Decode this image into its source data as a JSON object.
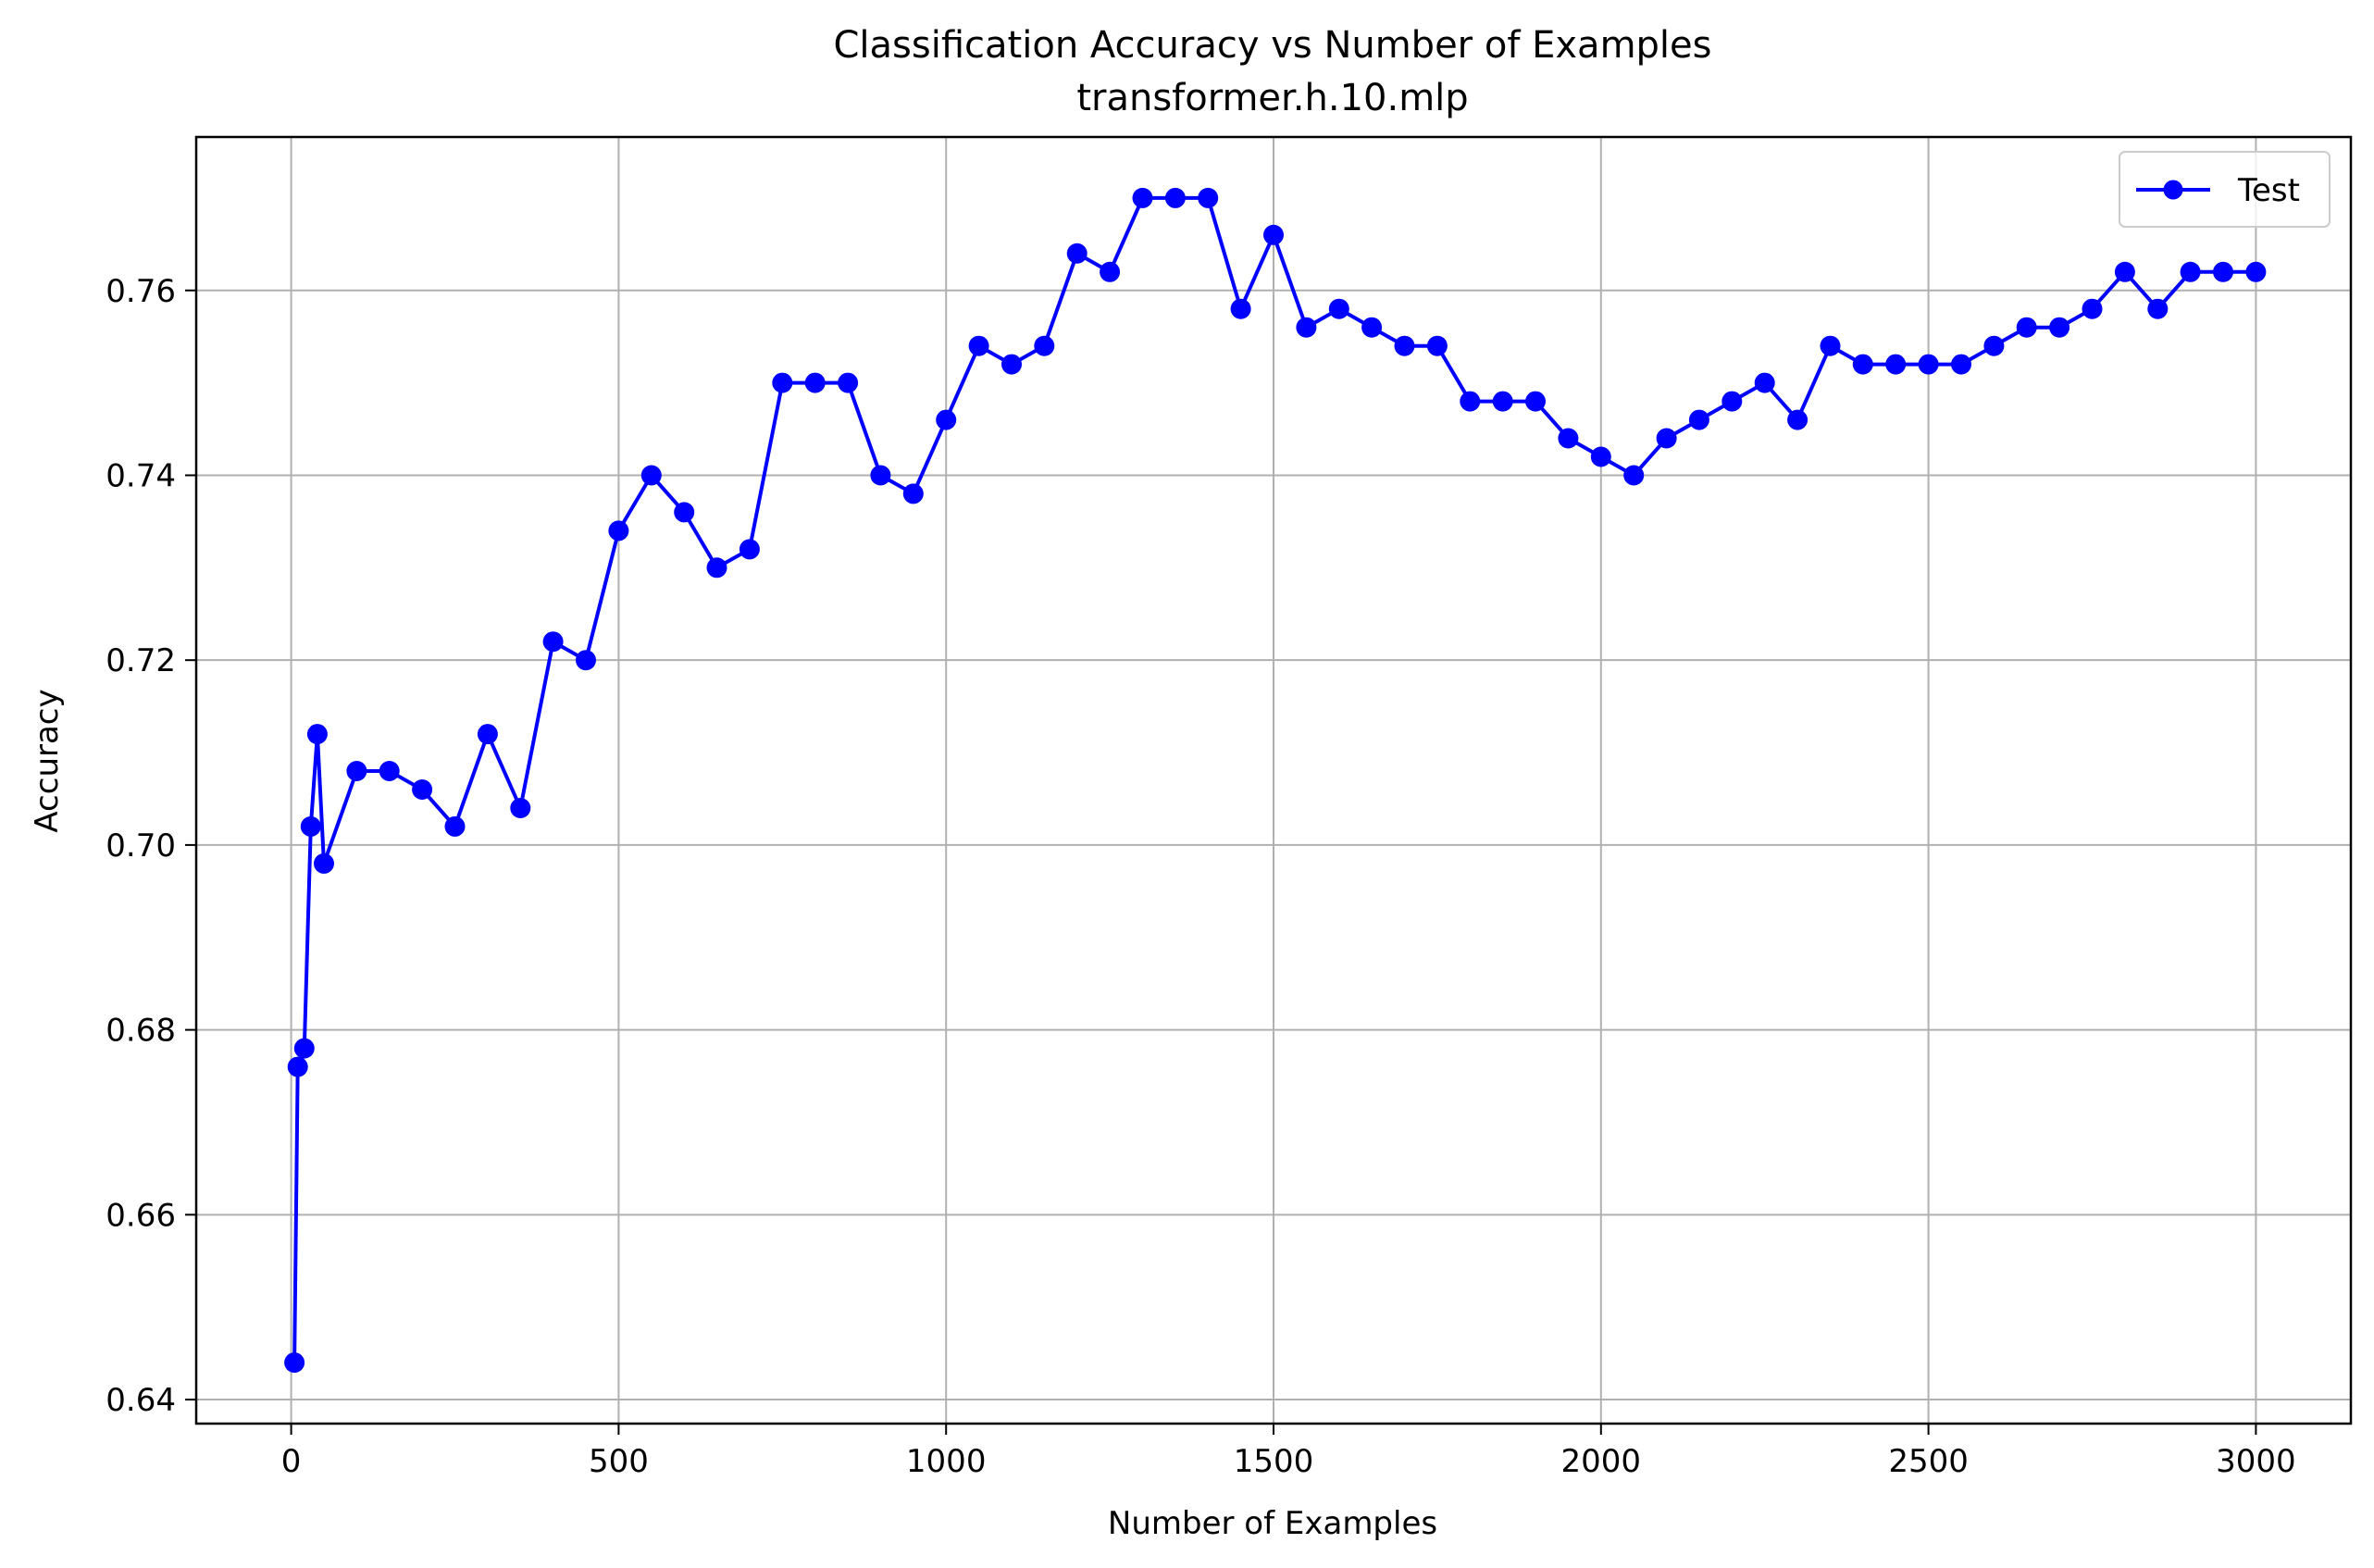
{
  "chart_data": {
    "type": "line",
    "title": "Classification Accuracy vs Number of Examples",
    "subtitle": "transformer.h.10.mlp",
    "xlabel": "Number of Examples",
    "ylabel": "Accuracy",
    "xlim": [
      -145,
      3145
    ],
    "ylim": [
      0.6374,
      0.7766
    ],
    "xticks": [
      0,
      500,
      1000,
      1500,
      2000,
      2500,
      3000
    ],
    "xtick_labels": [
      "0",
      "500",
      "1000",
      "1500",
      "2000",
      "2500",
      "3000"
    ],
    "yticks": [
      0.64,
      0.66,
      0.68,
      0.7,
      0.72,
      0.74,
      0.76
    ],
    "ytick_labels": [
      "0.64",
      "0.66",
      "0.68",
      "0.70",
      "0.72",
      "0.74",
      "0.76"
    ],
    "grid": true,
    "legend_position": "top-right",
    "series": [
      {
        "name": "Test",
        "color": "#0000ff",
        "marker": "circle",
        "x": [
          5,
          10,
          20,
          30,
          40,
          50,
          100,
          150,
          200,
          250,
          300,
          350,
          400,
          450,
          500,
          550,
          600,
          650,
          700,
          750,
          800,
          850,
          900,
          950,
          1000,
          1050,
          1100,
          1150,
          1200,
          1250,
          1300,
          1350,
          1400,
          1450,
          1500,
          1550,
          1600,
          1650,
          1700,
          1750,
          1800,
          1850,
          1900,
          1950,
          2000,
          2050,
          2100,
          2150,
          2200,
          2250,
          2300,
          2350,
          2400,
          2450,
          2500,
          2550,
          2600,
          2650,
          2700,
          2750,
          2800,
          2850,
          2900,
          2950,
          3000
        ],
        "y": [
          0.644,
          0.676,
          0.678,
          0.702,
          0.712,
          0.698,
          0.708,
          0.708,
          0.706,
          0.702,
          0.712,
          0.704,
          0.722,
          0.72,
          0.734,
          0.74,
          0.736,
          0.73,
          0.732,
          0.75,
          0.75,
          0.75,
          0.74,
          0.738,
          0.746,
          0.754,
          0.752,
          0.754,
          0.764,
          0.762,
          0.77,
          0.77,
          0.77,
          0.758,
          0.766,
          0.756,
          0.758,
          0.756,
          0.754,
          0.754,
          0.748,
          0.748,
          0.748,
          0.744,
          0.742,
          0.74,
          0.744,
          0.746,
          0.748,
          0.75,
          0.746,
          0.754,
          0.752,
          0.752,
          0.752,
          0.752,
          0.754,
          0.756,
          0.756,
          0.758,
          0.762,
          0.758,
          0.762,
          0.762,
          0.762
        ]
      }
    ]
  }
}
